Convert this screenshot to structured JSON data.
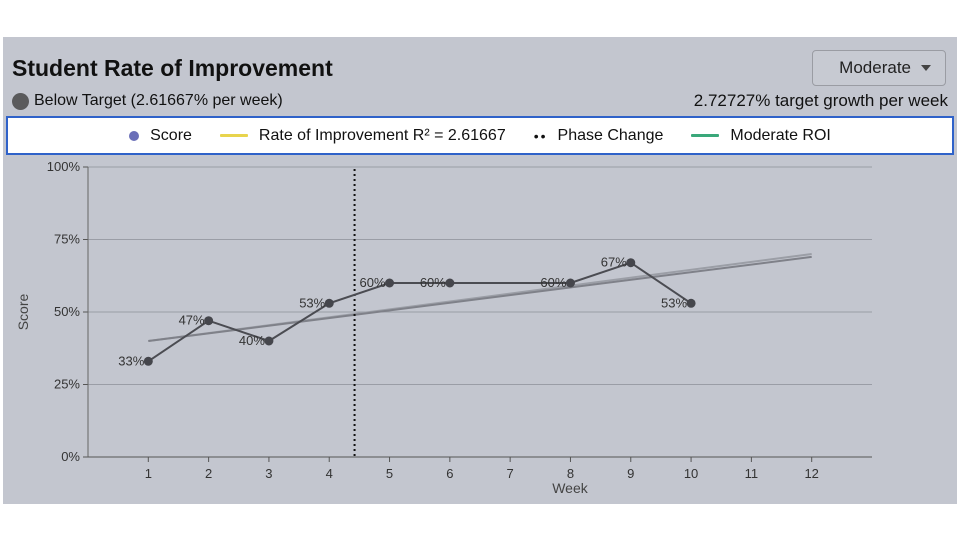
{
  "header": {
    "title": "Student Rate of Improvement",
    "status_text": "Below Target (2.61667% per week)",
    "target_text": "2.72727% target growth per week",
    "dropdown_value": "Moderate"
  },
  "legend": [
    {
      "kind": "dot",
      "label": "Score",
      "color": "#6a6fb8"
    },
    {
      "kind": "line",
      "label": "Rate of Improvement R² = 2.61667",
      "color": "#e8d44d"
    },
    {
      "kind": "dots",
      "label": "Phase Change",
      "color": "#111111"
    },
    {
      "kind": "line",
      "label": "Moderate ROI",
      "color": "#3aa87a"
    }
  ],
  "chart_data": {
    "type": "line",
    "xlabel": "Week",
    "ylabel": "Score",
    "xlim": [
      0,
      13
    ],
    "ylim": [
      0,
      100
    ],
    "x_ticks": [
      1,
      2,
      3,
      4,
      5,
      6,
      7,
      8,
      9,
      10,
      11,
      12
    ],
    "y_ticks": [
      0,
      25,
      50,
      75,
      100
    ],
    "y_tick_labels": [
      "0%",
      "25%",
      "50%",
      "75%",
      "100%"
    ],
    "grid": true,
    "series": [
      {
        "name": "Score",
        "x": [
          1,
          2,
          3,
          4,
          5,
          6,
          8,
          9,
          10
        ],
        "y": [
          33,
          47,
          40,
          53,
          60,
          60,
          60,
          67,
          53
        ],
        "labels": [
          "33%",
          "47%",
          "40%",
          "53%",
          "60%",
          "60%",
          "60%",
          "67%",
          "53%"
        ]
      },
      {
        "name": "Rate of Improvement R² = 2.61667",
        "x": [
          1,
          12
        ],
        "y": [
          40,
          69
        ]
      },
      {
        "name": "Moderate ROI",
        "x": [
          1,
          12
        ],
        "y": [
          40,
          70
        ]
      }
    ],
    "phase_change_x": 4.42
  }
}
